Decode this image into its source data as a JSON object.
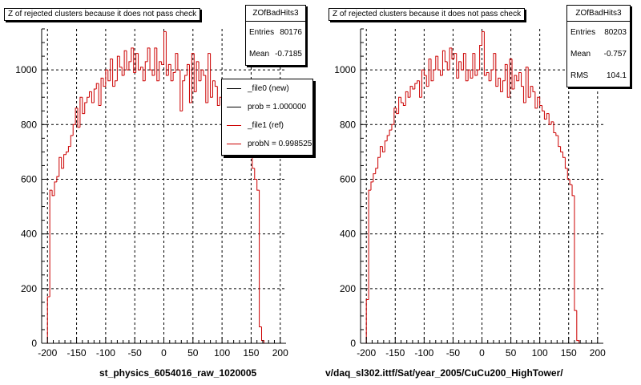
{
  "colors": {
    "hist_ref": "#cc0000",
    "axis": "#000000",
    "grid": "#000000",
    "legend_new": "#000000",
    "legend_ref": "#cc0000"
  },
  "chart_data": [
    {
      "type": "bar",
      "title": "Z of rejected clusters  because it does not pass check",
      "xlim": [
        -210,
        210
      ],
      "ylim": [
        0,
        1150
      ],
      "x_ticks": [
        "-200",
        "-150",
        "-100",
        "-50",
        "0",
        "50",
        "100",
        "150",
        "200"
      ],
      "y_ticks": [
        "0",
        "200",
        "400",
        "600",
        "800",
        "1000"
      ],
      "grid": true,
      "footer_label": "st_physics_6054016_raw_1020005",
      "stats": {
        "name": "ZOfBadHits3",
        "entries_label": "Entries",
        "entries": "80176",
        "mean_label": "Mean",
        "mean": "-0.7185"
      },
      "legend": {
        "placement": "top-right",
        "entries": [
          {
            "label": "_file0 (new)",
            "color": "#000000"
          },
          {
            "label": "prob = 1.000000",
            "color": "#000000"
          },
          {
            "label": "_file1 (ref)",
            "color": "#cc0000"
          },
          {
            "label": "probN = 0.998525",
            "color": "#cc0000"
          }
        ]
      },
      "bin_width": 4,
      "x_start": -200,
      "values": [
        170,
        560,
        540,
        590,
        610,
        680,
        640,
        690,
        700,
        720,
        760,
        800,
        860,
        790,
        900,
        840,
        880,
        900,
        920,
        880,
        930,
        950,
        870,
        970,
        940,
        1000,
        960,
        1040,
        940,
        960,
        1050,
        1010,
        980,
        1070,
        1000,
        1030,
        1080,
        990,
        1060,
        1000,
        1010,
        960,
        1030,
        1080,
        1000,
        980,
        1080,
        960,
        1030,
        1020,
        1140,
        980,
        1020,
        960,
        990,
        1060,
        1000,
        850,
        960,
        980,
        1020,
        880,
        1060,
        920,
        1030,
        960,
        1000,
        980,
        880,
        1060,
        900,
        960,
        940,
        870,
        900,
        880,
        860,
        820,
        850,
        800,
        810,
        780,
        760,
        800,
        760,
        720,
        700,
        680,
        640,
        600,
        560,
        60,
        10
      ]
    },
    {
      "type": "bar",
      "title": "Z of rejected clusters  because it does not pass check",
      "xlim": [
        -210,
        210
      ],
      "ylim": [
        0,
        1150
      ],
      "x_ticks": [
        "-200",
        "-150",
        "-100",
        "-50",
        "0",
        "50",
        "100",
        "150",
        "200"
      ],
      "y_ticks": [
        "0",
        "200",
        "400",
        "600",
        "800",
        "1000"
      ],
      "grid": true,
      "footer_label": "v/daq_sl302.ittf/Sat/year_2005/CuCu200_HighTower/",
      "stats": {
        "name": "ZOfBadHits3",
        "entries_label": "Entries",
        "entries": "80203",
        "mean_label": "Mean",
        "mean": "-0.757",
        "rms_label": "RMS",
        "rms": "104.1"
      },
      "bin_width": 4,
      "x_start": -200,
      "values": [
        160,
        560,
        590,
        620,
        640,
        680,
        720,
        700,
        740,
        760,
        780,
        800,
        860,
        840,
        900,
        880,
        870,
        920,
        900,
        940,
        930,
        950,
        960,
        900,
        1000,
        980,
        940,
        1040,
        960,
        1000,
        1050,
        1000,
        980,
        1070,
        1030,
        1000,
        1080,
        1040,
        1060,
        970,
        1030,
        1000,
        1060,
        960,
        1000,
        970,
        1060,
        980,
        1000,
        1090,
        1140,
        980,
        990,
        960,
        1000,
        1060,
        940,
        970,
        920,
        960,
        1020,
        900,
        1040,
        930,
        980,
        960,
        990,
        940,
        880,
        1010,
        900,
        940,
        920,
        860,
        900,
        870,
        850,
        820,
        840,
        800,
        810,
        770,
        760,
        720,
        700,
        680,
        640,
        600,
        580,
        540,
        120,
        10
      ]
    }
  ]
}
